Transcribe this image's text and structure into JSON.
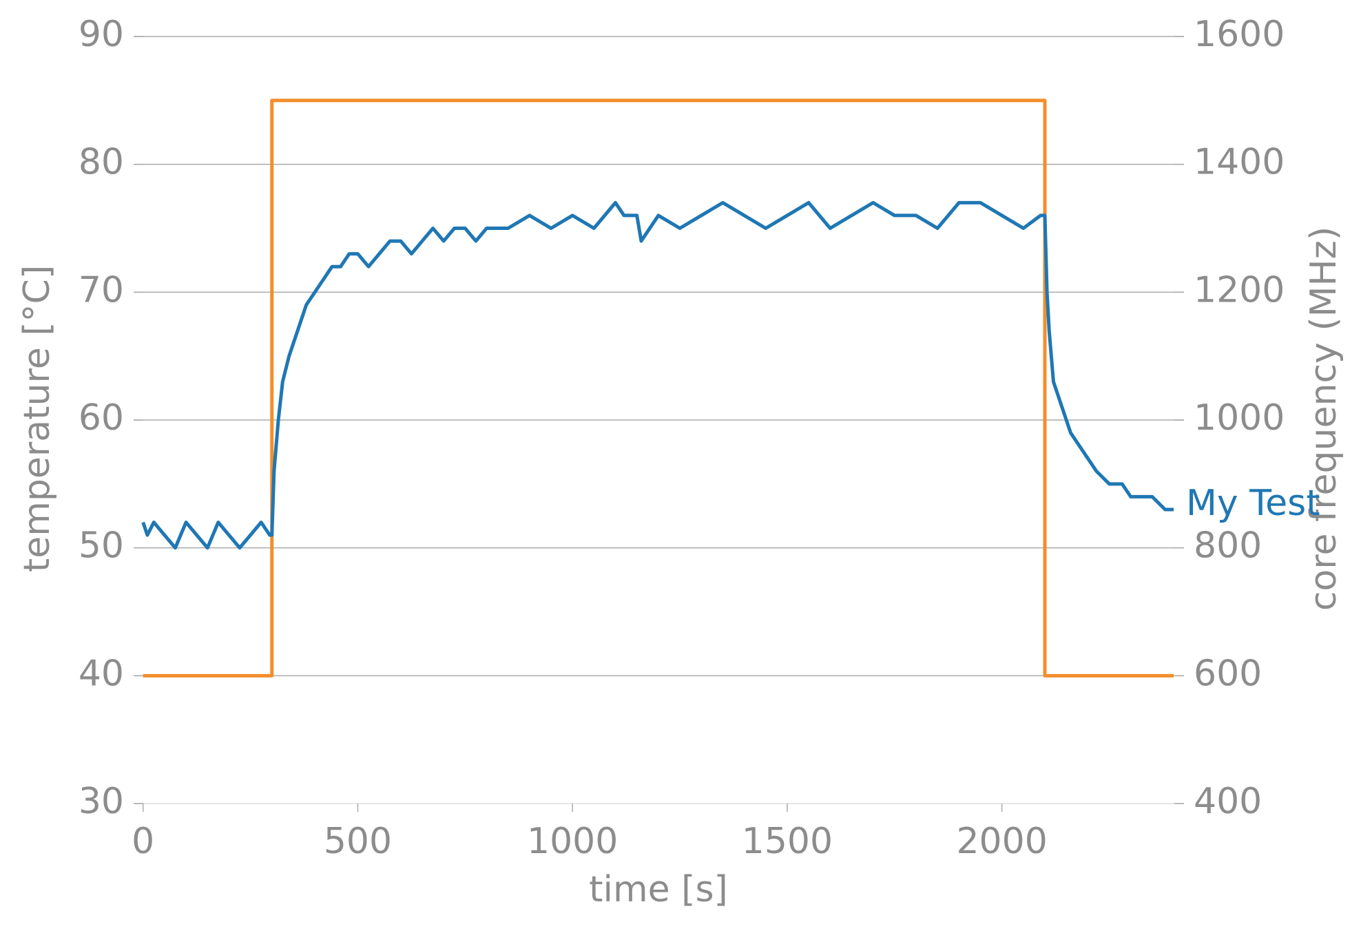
{
  "chart_data": {
    "type": "line",
    "xlabel": "time [s]",
    "ylabel": "temperature [°C]",
    "y2label": "core frequency (MHz)",
    "xlim": [
      -22,
      2424
    ],
    "xticks": [
      0,
      500,
      1000,
      1500,
      2000
    ],
    "ylim": [
      30,
      90
    ],
    "yticks": [
      30,
      40,
      50,
      60,
      70,
      80,
      90
    ],
    "y2lim": [
      400,
      1600
    ],
    "y2ticks": [
      400,
      600,
      800,
      1000,
      1200,
      1400,
      1600
    ],
    "grid": true,
    "series": [
      {
        "name": "My Test",
        "color": "#1f77b4",
        "x": [
          0,
          10,
          25,
          50,
          75,
          100,
          125,
          150,
          175,
          200,
          225,
          250,
          275,
          295,
          300,
          305,
          315,
          325,
          340,
          360,
          380,
          400,
          420,
          440,
          460,
          480,
          500,
          525,
          550,
          575,
          600,
          625,
          650,
          675,
          700,
          725,
          750,
          775,
          800,
          850,
          900,
          950,
          1000,
          1050,
          1100,
          1120,
          1150,
          1160,
          1200,
          1250,
          1300,
          1350,
          1400,
          1450,
          1500,
          1550,
          1600,
          1650,
          1700,
          1750,
          1800,
          1850,
          1900,
          1950,
          2000,
          2050,
          2090,
          2100,
          2105,
          2110,
          2120,
          2140,
          2160,
          2180,
          2200,
          2220,
          2250,
          2280,
          2300,
          2350,
          2380,
          2400
        ],
        "values": [
          52,
          51,
          52,
          51,
          50,
          52,
          51,
          50,
          52,
          51,
          50,
          51,
          52,
          51,
          51,
          56,
          60,
          63,
          65,
          67,
          69,
          70,
          71,
          72,
          72,
          73,
          73,
          72,
          73,
          74,
          74,
          73,
          74,
          75,
          74,
          75,
          75,
          74,
          75,
          75,
          76,
          75,
          76,
          75,
          77,
          76,
          76,
          74,
          76,
          75,
          76,
          77,
          76,
          75,
          76,
          77,
          75,
          76,
          77,
          76,
          76,
          75,
          77,
          77,
          76,
          75,
          76,
          76,
          70,
          67,
          63,
          61,
          59,
          58,
          57,
          56,
          55,
          55,
          54,
          54,
          53,
          53
        ]
      },
      {
        "name": null,
        "color": "#f28e2b",
        "axis": "y2",
        "x": [
          0,
          300,
          300,
          2100,
          2100,
          2400
        ],
        "values": [
          600,
          600,
          1500,
          1500,
          600,
          600
        ]
      }
    ]
  }
}
